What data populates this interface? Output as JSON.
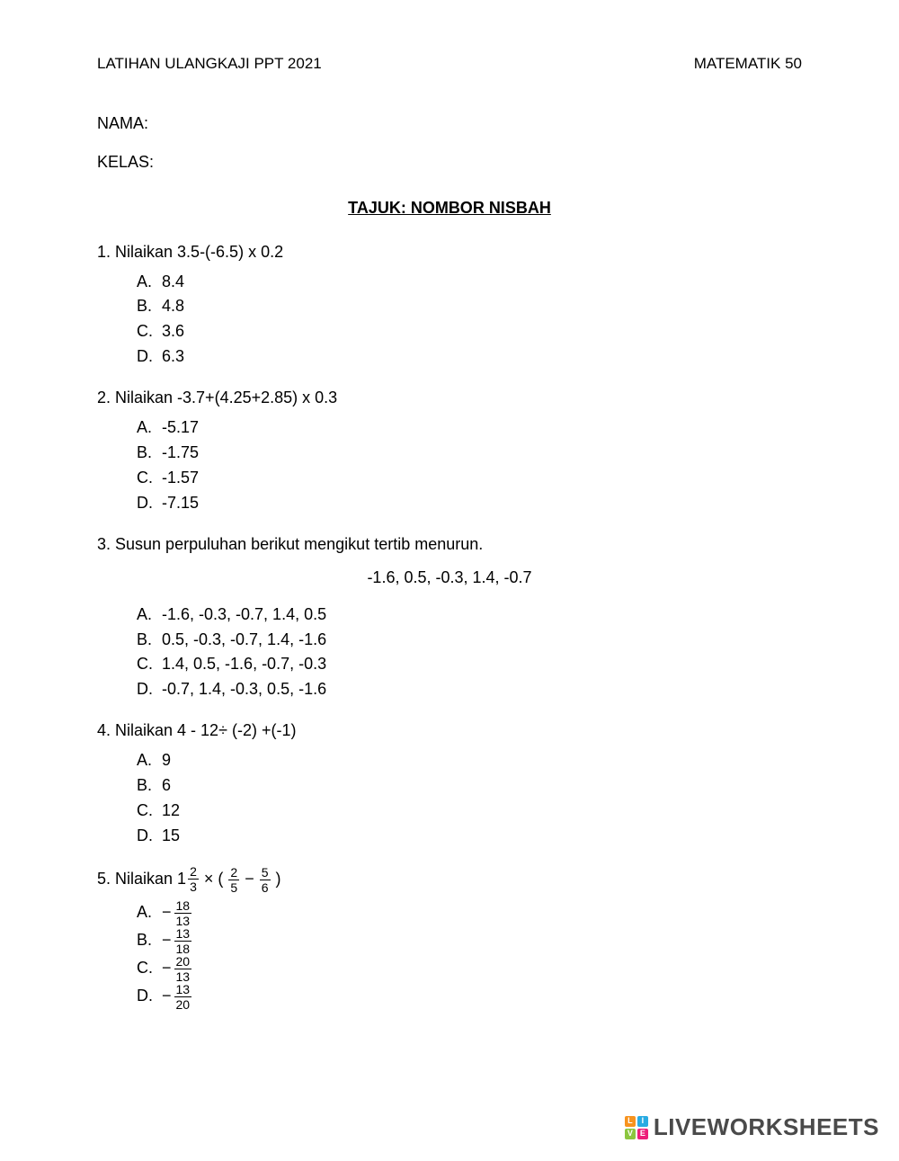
{
  "header": {
    "left": "LATIHAN ULANGKAJI PPT 2021",
    "right": "MATEMATIK 50"
  },
  "fields": {
    "nama": "NAMA:",
    "kelas": "KELAS:"
  },
  "title": "TAJUK: NOMBOR NISBAH",
  "questions": {
    "q1": {
      "text": "1. Nilaikan 3.5-(-6.5) x 0.2",
      "opts": {
        "A": "8.4",
        "B": "4.8",
        "C": "3.6",
        "D": "6.3"
      }
    },
    "q2": {
      "text": "2. Nilaikan -3.7+(4.25+2.85) x 0.3",
      "opts": {
        "A": "-5.17",
        "B": "-1.75",
        "C": "-1.57",
        "D": "-7.15"
      }
    },
    "q3": {
      "text": "3. Susun perpuluhan berikut mengikut tertib menurun.",
      "data": "-1.6, 0.5, -0.3, 1.4, -0.7",
      "opts": {
        "A": "-1.6, -0.3, -0.7, 1.4, 0.5",
        "B": "0.5, -0.3, -0.7, 1.4, -1.6",
        "C": "1.4, 0.5, -1.6, -0.7, -0.3",
        "D": "-0.7, 1.4, -0.3, 0.5, -1.6"
      }
    },
    "q4": {
      "text": "4. Nilaikan 4 - 12÷ (-2) +(-1)",
      "opts": {
        "A": "9",
        "B": "6",
        "C": "12",
        "D": "15"
      }
    },
    "q5": {
      "prefix": "5. Nilaikan ",
      "mixed": {
        "whole": "1",
        "num": "2",
        "den": "3"
      },
      "mid": " × (",
      "f1": {
        "num": "2",
        "den": "5"
      },
      "minus": " − ",
      "f2": {
        "num": "5",
        "den": "6"
      },
      "suffix": ")",
      "opts": {
        "A": {
          "num": "18",
          "den": "13"
        },
        "B": {
          "num": "13",
          "den": "18"
        },
        "C": {
          "num": "20",
          "den": "13"
        },
        "D": {
          "num": "13",
          "den": "20"
        }
      }
    }
  },
  "letters": {
    "A": "A.",
    "B": "B.",
    "C": "C.",
    "D": "D."
  },
  "watermark": {
    "logo": {
      "L": "L",
      "I": "I",
      "V": "V",
      "E": "E",
      "colors": {
        "L": "#f7931e",
        "I": "#29abe2",
        "V": "#8cc63f",
        "E": "#ed1e79"
      }
    },
    "text": "LIVEWORKSHEETS"
  },
  "style": {
    "text_color": "#000000",
    "bg_color": "#ffffff",
    "base_fontsize": 18,
    "frac_fontsize": 14,
    "wm_text_color": "#4a4a4a",
    "wm_fontsize": 26
  }
}
